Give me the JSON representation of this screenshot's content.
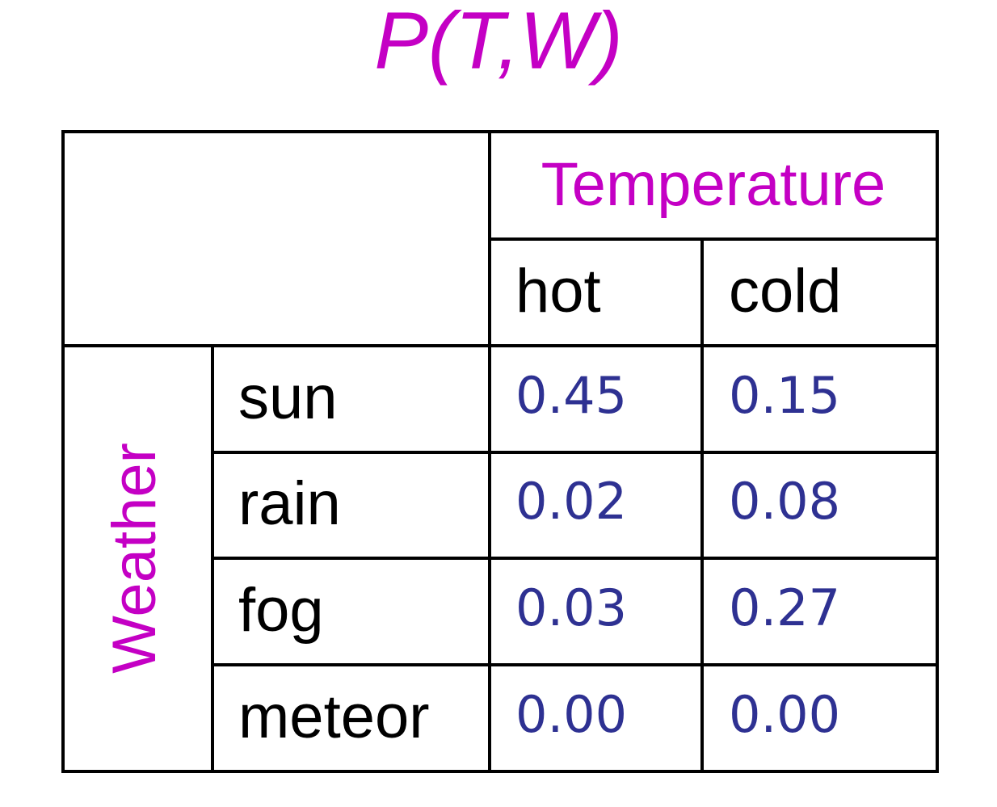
{
  "title": "P(T,W)",
  "table": {
    "column_group": "Temperature",
    "row_group": "Weather",
    "columns": [
      "hot",
      "cold"
    ],
    "rows": [
      {
        "label": "sun",
        "values": [
          "0.45",
          "0.15"
        ]
      },
      {
        "label": "rain",
        "values": [
          "0.02",
          "0.08"
        ]
      },
      {
        "label": "fog",
        "values": [
          "0.03",
          "0.27"
        ]
      },
      {
        "label": "meteor",
        "values": [
          "0.00",
          "0.00"
        ]
      }
    ]
  }
}
